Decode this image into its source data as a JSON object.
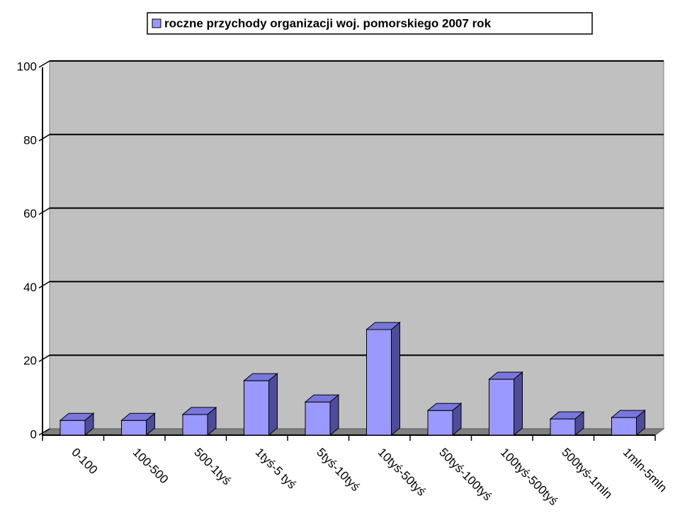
{
  "chart_data": {
    "type": "bar3d",
    "series": [
      {
        "name": "roczne przychody organizacji woj. pomorskiego 2007 rok",
        "color": "#9999ff",
        "values": [
          4,
          4,
          5.6,
          14.8,
          9,
          28.7,
          6.7,
          15.2,
          4.4,
          4.8
        ]
      }
    ],
    "categories": [
      "0-100",
      "100-500",
      "500-1tyś",
      "1tyś-5 tyś",
      "5tyś-10tyś",
      "10tyś-50tyś",
      "50tyś-100tyś",
      "100tyś-500tyś",
      "500tyś-1mln",
      "1mln-5mln"
    ],
    "ylim": [
      0,
      100
    ],
    "yticks": [
      0,
      20,
      40,
      60,
      80,
      100
    ],
    "grid": true,
    "legend": "top"
  }
}
